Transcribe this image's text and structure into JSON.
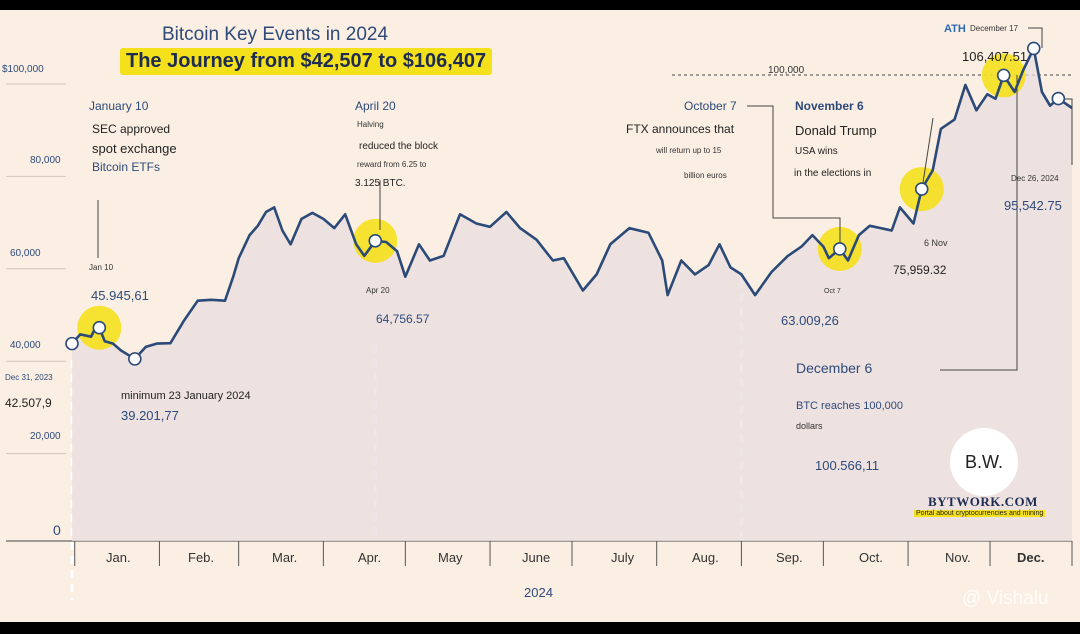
{
  "title": "Bitcoin Key Events in 2024",
  "subtitle": "The Journey from $42,507 to $106,407",
  "y_ticks": [
    "$100,000",
    "80,000",
    "60,000",
    "40,000",
    "20,000",
    "0"
  ],
  "x_months": [
    "Jan.",
    "Feb.",
    "Mar.",
    "Apr.",
    "May",
    "June",
    "July",
    "Aug.",
    "Sep.",
    "Oct.",
    "Nov.",
    "Dec."
  ],
  "x_year": "2024",
  "ref_line_label": "100,000",
  "annotations": {
    "start_date": "Dec 31, 2023",
    "start_value": "42.507,9",
    "jan10_title": "January 10",
    "jan10_line1": "SEC approved",
    "jan10_line2": "spot exchange",
    "jan10_line3": "Bitcoin ETFs",
    "jan10_tag": "Jan 10",
    "jan10_value": "45.945,61",
    "min_label": "minimum 23 January 2024",
    "min_value": "39.201,77",
    "apr20_title": "April 20",
    "apr20_line1": "Halving",
    "apr20_line2": "reduced the block",
    "apr20_line3": "reward from 6.25 to",
    "apr20_line4": "3.125 BTC.",
    "apr20_tag": "Apr 20",
    "apr20_value": "64,756.57",
    "oct7_title": "October 7",
    "oct7_line1": "FTX announces that",
    "oct7_line2": "will return up to 15",
    "oct7_line3": "billion euros",
    "oct7_tag": "Oct 7",
    "sep_min_value": "63.009,26",
    "nov6_title": "November 6",
    "nov6_line1": "Donald Trump",
    "nov6_line2": "USA wins",
    "nov6_line3": "in the elections in",
    "nov6_tag": "6 Nov",
    "nov6_value": "75,959.32",
    "ath_tag": "ATH",
    "ath_date": "December 17",
    "ath_value": "106,407.51",
    "dec26_tag": "Dec 26, 2024",
    "dec26_value": "95,542.75",
    "dec6_title": "December 6",
    "dec6_line1": "BTC reaches 100,000",
    "dec6_line2": "dollars",
    "dec6_value": "100.566,11"
  },
  "logo": {
    "initials": "B.W.",
    "brand": "BYTWORK.COM",
    "tagline": "Portal about cryptocurrencies and mining"
  },
  "watermark": "@ Vishalu",
  "colors": {
    "line": "#2b4a78",
    "highlight": "#f5e01c",
    "background": "#fbefe3",
    "area": "#e9dde0"
  },
  "chart_data": {
    "type": "area",
    "title": "Bitcoin Key Events in 2024",
    "subtitle": "The Journey from $42,507 to $106,407",
    "xlabel": "2024",
    "ylabel": "",
    "ylim": [
      0,
      110000
    ],
    "grid": false,
    "categories": [
      "Jan.",
      "Feb.",
      "Mar.",
      "Apr.",
      "May",
      "June",
      "July",
      "Aug.",
      "Sep.",
      "Oct.",
      "Nov.",
      "Dec."
    ],
    "series": [
      {
        "points": [
          [
            "2023-12-31",
            42508
          ],
          [
            "2024-01-03",
            44500
          ],
          [
            "2024-01-07",
            44000
          ],
          [
            "2024-01-09",
            46500
          ],
          [
            "2024-01-10",
            45946
          ],
          [
            "2024-01-12",
            43000
          ],
          [
            "2024-01-15",
            42500
          ],
          [
            "2024-01-18",
            41000
          ],
          [
            "2024-01-23",
            39202
          ],
          [
            "2024-01-27",
            41800
          ],
          [
            "2024-01-31",
            42500
          ],
          [
            "2024-02-05",
            42600
          ],
          [
            "2024-02-10",
            47500
          ],
          [
            "2024-02-15",
            51800
          ],
          [
            "2024-02-20",
            52000
          ],
          [
            "2024-02-25",
            51800
          ],
          [
            "2024-02-28",
            57000
          ],
          [
            "2024-03-01",
            61000
          ],
          [
            "2024-03-05",
            66000
          ],
          [
            "2024-03-08",
            68000
          ],
          [
            "2024-03-11",
            71000
          ],
          [
            "2024-03-14",
            72000
          ],
          [
            "2024-03-17",
            67000
          ],
          [
            "2024-03-20",
            64000
          ],
          [
            "2024-03-24",
            69500
          ],
          [
            "2024-03-28",
            70800
          ],
          [
            "2024-04-01",
            69500
          ],
          [
            "2024-04-05",
            67500
          ],
          [
            "2024-04-09",
            70500
          ],
          [
            "2024-04-13",
            64000
          ],
          [
            "2024-04-16",
            61500
          ],
          [
            "2024-04-20",
            64757
          ],
          [
            "2024-04-24",
            64500
          ],
          [
            "2024-04-28",
            62500
          ],
          [
            "2024-05-01",
            57000
          ],
          [
            "2024-05-06",
            64000
          ],
          [
            "2024-05-10",
            60500
          ],
          [
            "2024-05-15",
            61500
          ],
          [
            "2024-05-21",
            70500
          ],
          [
            "2024-05-27",
            68500
          ],
          [
            "2024-06-01",
            67800
          ],
          [
            "2024-06-07",
            71000
          ],
          [
            "2024-06-12",
            67500
          ],
          [
            "2024-06-18",
            65000
          ],
          [
            "2024-06-24",
            60500
          ],
          [
            "2024-06-28",
            61000
          ],
          [
            "2024-07-05",
            54000
          ],
          [
            "2024-07-10",
            57500
          ],
          [
            "2024-07-15",
            64000
          ],
          [
            "2024-07-22",
            67500
          ],
          [
            "2024-07-29",
            66500
          ],
          [
            "2024-08-03",
            60500
          ],
          [
            "2024-08-05",
            53000
          ],
          [
            "2024-08-10",
            60500
          ],
          [
            "2024-08-15",
            57500
          ],
          [
            "2024-08-20",
            59500
          ],
          [
            "2024-08-24",
            64000
          ],
          [
            "2024-08-28",
            59000
          ],
          [
            "2024-09-01",
            57500
          ],
          [
            "2024-09-06",
            53000
          ],
          [
            "2024-09-12",
            58000
          ],
          [
            "2024-09-18",
            61500
          ],
          [
            "2024-09-23",
            63500
          ],
          [
            "2024-09-27",
            66000
          ],
          [
            "2024-10-01",
            63500
          ],
          [
            "2024-10-03",
            61000
          ],
          [
            "2024-10-07",
            63009
          ],
          [
            "2024-10-10",
            60500
          ],
          [
            "2024-10-14",
            66000
          ],
          [
            "2024-10-18",
            68000
          ],
          [
            "2024-10-22",
            67500
          ],
          [
            "2024-10-26",
            67000
          ],
          [
            "2024-10-29",
            72000
          ],
          [
            "2024-11-03",
            68500
          ],
          [
            "2024-11-06",
            75959
          ],
          [
            "2024-11-10",
            80000
          ],
          [
            "2024-11-13",
            89000
          ],
          [
            "2024-11-18",
            91000
          ],
          [
            "2024-11-22",
            98500
          ],
          [
            "2024-11-26",
            93000
          ],
          [
            "2024-11-30",
            96500
          ],
          [
            "2024-12-03",
            95500
          ],
          [
            "2024-12-06",
            100566
          ],
          [
            "2024-12-10",
            97000
          ],
          [
            "2024-12-13",
            101500
          ],
          [
            "2024-12-17",
            106408
          ],
          [
            "2024-12-20",
            97000
          ],
          [
            "2024-12-23",
            94000
          ],
          [
            "2024-12-26",
            95543
          ],
          [
            "2024-12-31",
            93500
          ]
        ]
      }
    ],
    "markers": [
      {
        "date": "2023-12-31",
        "value": 42508
      },
      {
        "date": "2024-01-10",
        "value": 45946,
        "highlight": true
      },
      {
        "date": "2024-01-23",
        "value": 39202
      },
      {
        "date": "2024-04-20",
        "value": 64757,
        "highlight": true
      },
      {
        "date": "2024-10-07",
        "value": 63009,
        "highlight": true
      },
      {
        "date": "2024-11-06",
        "value": 75959,
        "highlight": true
      },
      {
        "date": "2024-12-06",
        "value": 100566,
        "highlight": true
      },
      {
        "date": "2024-12-17",
        "value": 106408
      },
      {
        "date": "2024-12-26",
        "value": 95543
      }
    ],
    "reference_line": {
      "value": 100000
    }
  }
}
